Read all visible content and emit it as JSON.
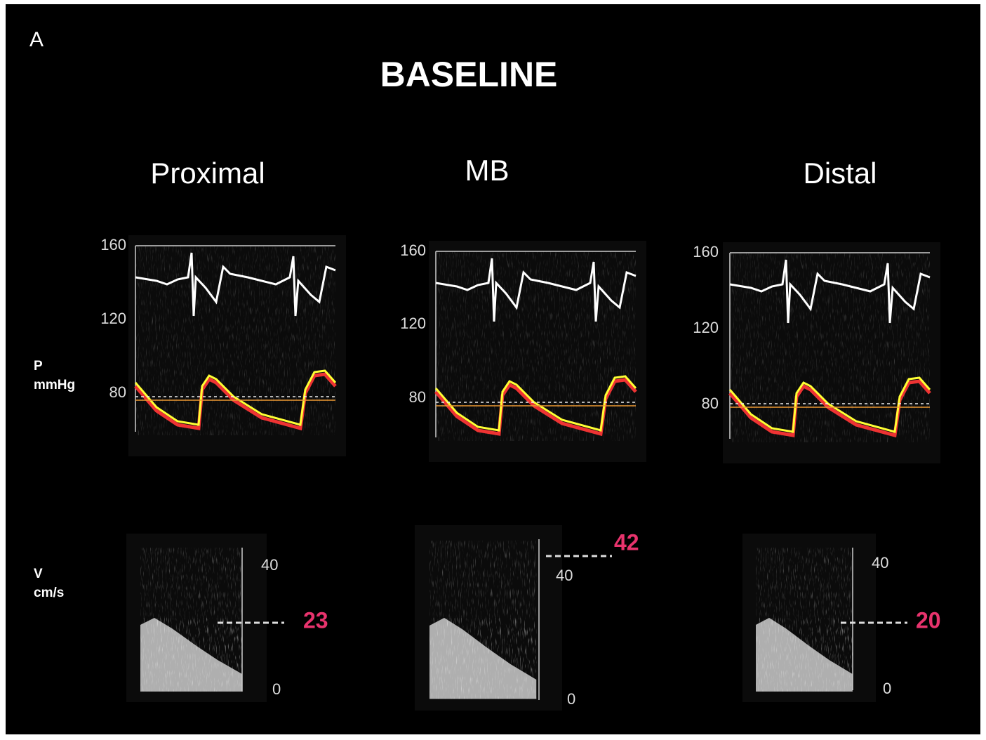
{
  "panel_label": "A",
  "title": "BASELINE",
  "pressure_axis": {
    "label": "P",
    "unit": "mmHg"
  },
  "velocity_axis": {
    "label": "V",
    "unit": "cm/s"
  },
  "columns": [
    {
      "name": "Proximal",
      "pressure_ticks": [
        160,
        120,
        80
      ],
      "velocity_ticks": [
        40,
        0
      ],
      "peak_velocity": 23
    },
    {
      "name": "MB",
      "pressure_ticks": [
        160,
        120,
        80
      ],
      "velocity_ticks": [
        40,
        0
      ],
      "peak_velocity": 42
    },
    {
      "name": "Distal",
      "pressure_ticks": [
        160,
        120,
        80
      ],
      "velocity_ticks": [
        40,
        0
      ],
      "peak_velocity": 20
    }
  ]
}
